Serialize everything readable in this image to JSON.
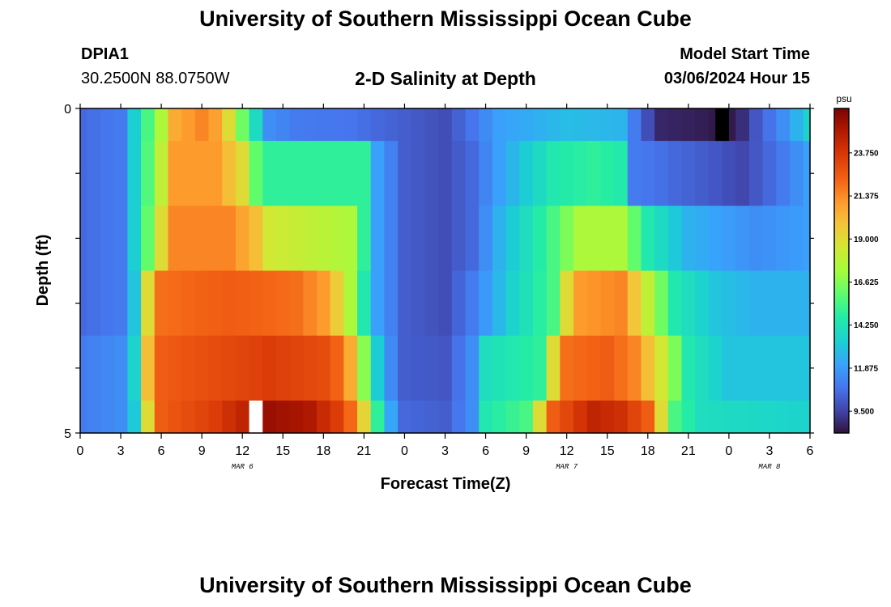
{
  "header": {
    "title": "University of Southern Mississippi Ocean Cube",
    "station_id": "DPIA1",
    "station_coords": "30.2500N  88.0750W",
    "subtitle": "2-D Salinity at Depth",
    "model_start_label": "Model Start Time",
    "model_start_value": "03/06/2024 Hour 15"
  },
  "footer": {
    "title": "University of Southern Mississippi Ocean Cube"
  },
  "chart_data": {
    "type": "heatmap",
    "xlabel": "Forecast Time(Z)",
    "ylabel": "Depth (ft)",
    "x_tick_labels": [
      "0",
      "3",
      "6",
      "9",
      "12",
      "15",
      "18",
      "21",
      "0",
      "3",
      "6",
      "9",
      "12",
      "15",
      "18",
      "21",
      "0",
      "3",
      "6"
    ],
    "y_tick_labels": [
      "0",
      "5"
    ],
    "ylim": [
      0,
      5
    ],
    "day_labels": [
      {
        "text": "MAR 6",
        "at_hour": 12
      },
      {
        "text": "MAR 7",
        "at_hour": 36
      },
      {
        "text": "MAR 8",
        "at_hour": 51
      }
    ],
    "x_range_hours": [
      0,
      54
    ],
    "depth_levels": [
      0,
      0.5,
      1.5,
      2.5,
      3.5,
      4.5
    ],
    "depth_edges": [
      0,
      0.5,
      1.5,
      2.5,
      3.5,
      4.5,
      5
    ],
    "colorbar": {
      "unit": "psu",
      "min": 8.3,
      "max": 26.2,
      "tick_values": [
        9.5,
        11.875,
        14.25,
        16.625,
        19.0,
        21.375,
        23.75
      ],
      "tick_labels": [
        "9.500",
        "11.875",
        "14.250",
        "16.625",
        "19.000",
        "21.375",
        "23.750"
      ]
    },
    "row_profiles": [
      {
        "depth": 0,
        "points": [
          [
            0,
            10.5
          ],
          [
            3,
            11.0
          ],
          [
            4.5,
            14.5
          ],
          [
            6,
            17.5
          ],
          [
            7,
            20.5
          ],
          [
            9,
            21.5
          ],
          [
            10.5,
            20.5
          ],
          [
            11.5,
            17.5
          ],
          [
            12.5,
            15.0
          ],
          [
            14,
            11.5
          ],
          [
            16,
            11.0
          ],
          [
            20,
            10.8
          ],
          [
            24,
            10.2
          ],
          [
            27,
            9.8
          ],
          [
            29,
            10.8
          ],
          [
            31,
            12.0
          ],
          [
            36,
            12.8
          ],
          [
            40,
            12.6
          ],
          [
            41,
            11.0
          ],
          [
            42,
            9.8
          ],
          [
            43,
            8.8
          ],
          [
            46,
            8.6
          ],
          [
            47.7,
            8.4
          ],
          [
            48,
            8.5
          ],
          [
            49,
            9.0
          ],
          [
            50,
            10.0
          ],
          [
            52,
            11.5
          ],
          [
            54,
            13.5
          ]
        ]
      },
      {
        "depth": 0.5,
        "points": [
          [
            0,
            10.5
          ],
          [
            3,
            11.0
          ],
          [
            4.5,
            14.5
          ],
          [
            6,
            18.0
          ],
          [
            7,
            21.0
          ],
          [
            10,
            21.0
          ],
          [
            12,
            19.0
          ],
          [
            13,
            16.0
          ],
          [
            13.5,
            15.0
          ],
          [
            21,
            15.0
          ],
          [
            22,
            12.0
          ],
          [
            24,
            10.2
          ],
          [
            27,
            9.8
          ],
          [
            29,
            10.5
          ],
          [
            31,
            12.0
          ],
          [
            35,
            14.5
          ],
          [
            38,
            15.0
          ],
          [
            40.5,
            14.5
          ],
          [
            41,
            11.0
          ],
          [
            44,
            10.5
          ],
          [
            47,
            10.0
          ],
          [
            49,
            9.6
          ],
          [
            51,
            10.5
          ],
          [
            53,
            11.5
          ],
          [
            54,
            12.0
          ]
        ]
      },
      {
        "depth": 1.5,
        "points": [
          [
            0,
            10.5
          ],
          [
            3,
            11.0
          ],
          [
            4.5,
            14.5
          ],
          [
            6,
            19.0
          ],
          [
            7,
            21.5
          ],
          [
            11,
            21.5
          ],
          [
            13,
            20.0
          ],
          [
            14,
            18.5
          ],
          [
            20,
            17.5
          ],
          [
            21,
            15.0
          ],
          [
            22,
            12.0
          ],
          [
            24,
            10.2
          ],
          [
            27,
            9.8
          ],
          [
            29,
            10.5
          ],
          [
            31,
            12.5
          ],
          [
            35,
            15.5
          ],
          [
            37,
            17.5
          ],
          [
            40,
            17.5
          ],
          [
            42,
            14.5
          ],
          [
            45,
            12.5
          ],
          [
            50,
            11.5
          ],
          [
            54,
            12.0
          ]
        ]
      },
      {
        "depth": 2.5,
        "points": [
          [
            0,
            10.5
          ],
          [
            3,
            11.0
          ],
          [
            4.5,
            14.0
          ],
          [
            5,
            19.0
          ],
          [
            6,
            22.0
          ],
          [
            11,
            22.5
          ],
          [
            16,
            22.0
          ],
          [
            18,
            21.0
          ],
          [
            19,
            19.5
          ],
          [
            20,
            17.5
          ],
          [
            21,
            14.5
          ],
          [
            22,
            12.0
          ],
          [
            24,
            10.2
          ],
          [
            27,
            9.8
          ],
          [
            29,
            11.0
          ],
          [
            32,
            13.5
          ],
          [
            35,
            15.5
          ],
          [
            36,
            19.0
          ],
          [
            37,
            21.0
          ],
          [
            40,
            21.5
          ],
          [
            42,
            18.0
          ],
          [
            44,
            14.5
          ],
          [
            47,
            13.0
          ],
          [
            50,
            12.5
          ],
          [
            54,
            12.5
          ]
        ]
      },
      {
        "depth": 3.5,
        "points": [
          [
            0,
            11.0
          ],
          [
            3,
            11.5
          ],
          [
            4.5,
            14.5
          ],
          [
            5,
            20.0
          ],
          [
            6,
            22.5
          ],
          [
            10,
            23.0
          ],
          [
            14,
            23.5
          ],
          [
            18,
            23.0
          ],
          [
            19.5,
            22.0
          ],
          [
            20.5,
            19.0
          ],
          [
            21.5,
            14.5
          ],
          [
            22.5,
            12.0
          ],
          [
            24,
            10.2
          ],
          [
            27,
            10.0
          ],
          [
            29,
            11.5
          ],
          [
            30,
            14.0
          ],
          [
            34,
            15.0
          ],
          [
            35,
            19.0
          ],
          [
            36,
            22.0
          ],
          [
            39,
            22.5
          ],
          [
            41,
            21.5
          ],
          [
            43,
            18.5
          ],
          [
            45,
            14.5
          ],
          [
            48,
            13.0
          ],
          [
            54,
            13.0
          ]
        ]
      },
      {
        "depth": 4.5,
        "points": [
          [
            0,
            11.0
          ],
          [
            3,
            11.5
          ],
          [
            4.5,
            14.0
          ],
          [
            5,
            19.0
          ],
          [
            6,
            22.5
          ],
          [
            10,
            23.5
          ],
          [
            12,
            24.5
          ],
          [
            13,
            25.0
          ],
          [
            14,
            25.5
          ],
          [
            17,
            25.0
          ],
          [
            19,
            23.5
          ],
          [
            20.5,
            21.5
          ],
          [
            21.5,
            17.0
          ],
          [
            22.5,
            13.0
          ],
          [
            24,
            10.5
          ],
          [
            27,
            10.2
          ],
          [
            29,
            11.5
          ],
          [
            30,
            14.5
          ],
          [
            33,
            15.5
          ],
          [
            34,
            19.0
          ],
          [
            35,
            22.5
          ],
          [
            38,
            24.5
          ],
          [
            40,
            24.0
          ],
          [
            42,
            22.5
          ],
          [
            43,
            19.0
          ],
          [
            44,
            15.5
          ],
          [
            46,
            14.0
          ],
          [
            54,
            13.5
          ]
        ]
      }
    ],
    "missing_cells": [
      {
        "depth": 0,
        "hour": 47.5,
        "color": "#000000"
      },
      {
        "depth": 4.5,
        "hour": 13,
        "color": "#ffffff"
      }
    ]
  }
}
